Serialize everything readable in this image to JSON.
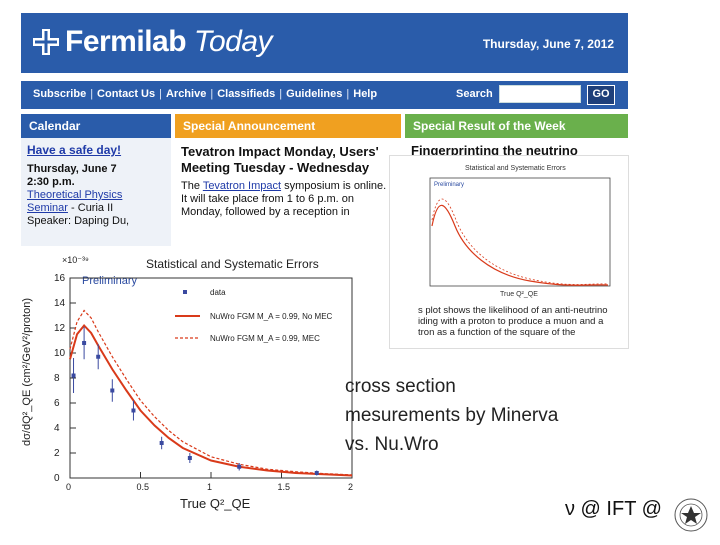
{
  "header": {
    "brand_bold": "Fermilab",
    "brand_italic": "Today",
    "date": "Thursday, June 7, 2012"
  },
  "nav": {
    "items": [
      "Subscribe",
      "Contact Us",
      "Archive",
      "Classifieds",
      "Guidelines",
      "Help"
    ],
    "search_label": "Search",
    "go_label": "GO"
  },
  "calendar": {
    "heading": "Calendar",
    "safe_day": "Have a safe day!",
    "date": "Thursday, June 7",
    "time": "2:30 p.m.",
    "seminar_link": "Theoretical Physics Seminar",
    "seminar_place": " - Curia II",
    "speaker": "Speaker: Daping Du,"
  },
  "announcement": {
    "heading": "Special Announcement",
    "title": "Tevatron Impact Monday, Users' Meeting Tuesday - Wednesday",
    "body_pre": "The ",
    "body_link": "Tevatron Impact",
    "body_post": " symposium is online. It will take place from 1 to 6 p.m. on Monday, followed by a reception in"
  },
  "result": {
    "heading": "Special Result of the Week",
    "title": "Fingerprinting the neutrino",
    "text": "s plot shows the likelihood of an anti-neutrino iding with a proton to produce a muon and a tron as a function of the square of the"
  },
  "caption": [
    "cross section",
    "mesurements by Minerva",
    "vs. Nu.Wro"
  ],
  "footer": {
    "text": "ν @ IFT @"
  },
  "chart_data": {
    "type": "line",
    "title": "Statistical and Systematic Errors",
    "scale_note": "×10⁻³⁹",
    "tag": "Preliminary",
    "xlabel": "True Q²_QE",
    "ylabel": "dσ/dQ²_QE (cm²/GeV²/proton)",
    "xlim": [
      0,
      2
    ],
    "ylim": [
      0,
      16
    ],
    "xticks": [
      "0",
      "0.5",
      "1",
      "1.5",
      "2"
    ],
    "yticks": [
      "0",
      "2",
      "4",
      "6",
      "8",
      "10",
      "12",
      "14",
      "16"
    ],
    "legend": [
      "data",
      "NuWro FGM M_A = 0.99, No MEC",
      "NuWro FGM M_A = 0.99, MEC"
    ],
    "colors": {
      "data": "#3a4aa0",
      "nomec": "#d93a1a",
      "mec": "#d93a1a"
    },
    "series": [
      {
        "name": "data",
        "x": [
          0.025,
          0.1,
          0.2,
          0.3,
          0.45,
          0.65,
          0.85,
          1.2,
          1.75
        ],
        "y": [
          8.2,
          10.8,
          9.7,
          7.0,
          5.4,
          2.8,
          1.6,
          0.9,
          0.4
        ],
        "err": [
          1.4,
          1.3,
          1.0,
          0.9,
          0.8,
          0.5,
          0.4,
          0.3,
          0.2
        ]
      },
      {
        "name": "NuWro FGM M_A = 0.99, No MEC",
        "x": [
          0,
          0.05,
          0.1,
          0.15,
          0.2,
          0.3,
          0.4,
          0.5,
          0.6,
          0.7,
          0.8,
          1.0,
          1.2,
          1.4,
          1.6,
          1.8,
          2.0
        ],
        "y": [
          9.5,
          11.5,
          12.2,
          11.6,
          10.6,
          8.7,
          7.0,
          5.4,
          4.2,
          3.2,
          2.4,
          1.4,
          0.9,
          0.6,
          0.4,
          0.3,
          0.2
        ]
      },
      {
        "name": "NuWro FGM M_A = 0.99, MEC",
        "x": [
          0,
          0.05,
          0.1,
          0.15,
          0.2,
          0.3,
          0.4,
          0.5,
          0.6,
          0.7,
          0.8,
          1.0,
          1.2,
          1.4,
          1.6,
          1.8,
          2.0
        ],
        "y": [
          10.3,
          12.5,
          13.4,
          12.8,
          11.7,
          9.7,
          7.9,
          6.2,
          4.9,
          3.8,
          2.9,
          1.7,
          1.1,
          0.7,
          0.5,
          0.35,
          0.25
        ]
      }
    ]
  }
}
